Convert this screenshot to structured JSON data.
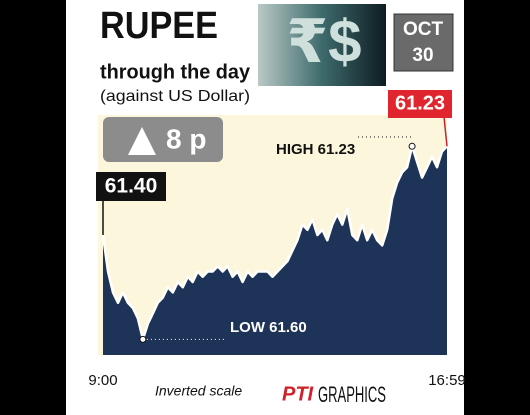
{
  "chart_data": {
    "type": "line",
    "title": "RUPEE",
    "subtitle": "through the day",
    "note": "(against US Dollar)",
    "currency_symbols": "₹$",
    "date": [
      "OCT",
      "30"
    ],
    "change": "8 p",
    "categories": [
      "9:00",
      null,
      null,
      null,
      null,
      null,
      null,
      null,
      null,
      null,
      null,
      null,
      null,
      null,
      null,
      null,
      null,
      null,
      null,
      null,
      null,
      null,
      null,
      null,
      null,
      null,
      null,
      null,
      null,
      null,
      null,
      null,
      null,
      null,
      null,
      null,
      null,
      null,
      null,
      null,
      null,
      null,
      null,
      null,
      null,
      null,
      null,
      null,
      null,
      null,
      null,
      null,
      null,
      null,
      null,
      null,
      null,
      null,
      null,
      null,
      null,
      null,
      null,
      null,
      null,
      null,
      null,
      null,
      null,
      "16:59"
    ],
    "values": [
      61.4,
      61.47,
      61.51,
      61.53,
      61.51,
      61.53,
      61.54,
      61.56,
      61.6,
      61.57,
      61.55,
      61.53,
      61.52,
      61.5,
      61.51,
      61.49,
      61.5,
      61.48,
      61.49,
      61.47,
      61.48,
      61.47,
      61.47,
      61.46,
      61.47,
      61.46,
      61.48,
      61.47,
      61.49,
      61.47,
      61.48,
      61.47,
      61.47,
      61.47,
      61.48,
      61.47,
      61.46,
      61.45,
      61.43,
      61.41,
      61.38,
      61.39,
      61.37,
      61.4,
      61.39,
      61.41,
      61.38,
      61.36,
      61.38,
      61.35,
      61.4,
      61.41,
      61.38,
      61.41,
      61.39,
      61.41,
      61.42,
      61.39,
      61.33,
      61.3,
      61.28,
      61.27,
      61.23,
      61.26,
      61.29,
      61.27,
      61.25,
      61.27,
      61.24,
      61.23
    ],
    "ylim": [
      61.17,
      61.63
    ],
    "inverted": true,
    "color": "#ffffff",
    "area_color": "#1e3358",
    "background_color": "#fbf6dc",
    "annotations": {
      "open_label": "61.40",
      "close_label": "61.23",
      "high_label": "HIGH 61.23",
      "low_label": "LOW 61.60",
      "scale_note": "Inverted scale"
    },
    "credit_logo": "PTI",
    "credit": "GRAPHICS"
  }
}
